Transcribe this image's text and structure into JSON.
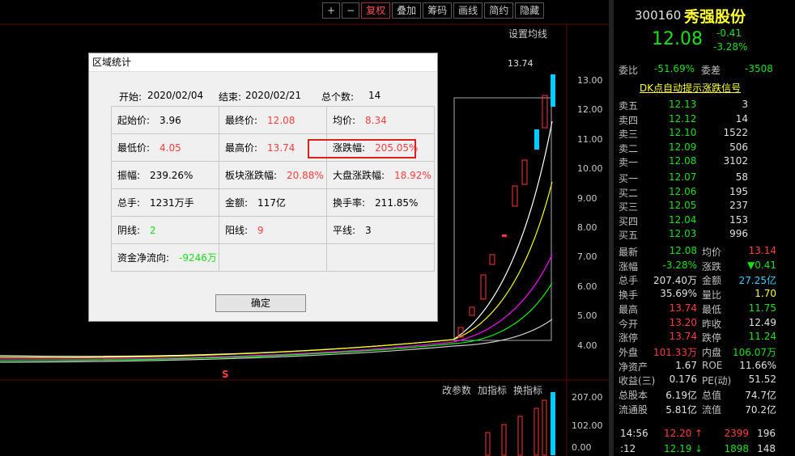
{
  "toolbar": [
    "+",
    "−",
    "复权",
    "叠加",
    "筹码",
    "画线",
    "简约",
    "隐藏"
  ],
  "chart": {
    "ma_setting": "设置均线",
    "high_label": "13.74",
    "marker": "S",
    "price_labels": [
      "13.00",
      "12.00",
      "11.00",
      "10.00",
      "9.00",
      "8.00",
      "7.00",
      "6.00",
      "5.00",
      "4.00"
    ],
    "volume_tabs": [
      "改参数",
      "加指标",
      "换指标"
    ],
    "volume_labels": [
      "207.00",
      "102.00",
      "0.00"
    ]
  },
  "dialog": {
    "title": "区域统计",
    "start_label": "开始:",
    "start": "2020/02/04",
    "end_label": "结束:",
    "end": "2020/02/21",
    "count_label": "总个数:",
    "count": "14",
    "cells": [
      [
        [
          "起始价:",
          "3.96"
        ],
        [
          "最终价:",
          "12.08"
        ],
        [
          "均价:",
          "8.34"
        ]
      ],
      [
        [
          "最低价:",
          "4.05"
        ],
        [
          "最高价:",
          "13.74"
        ],
        [
          "涨跌幅:",
          "205.05%"
        ]
      ],
      [
        [
          "振幅:",
          "239.26%"
        ],
        [
          "板块涨跌幅:",
          "20.88%"
        ],
        [
          "大盘涨跌幅:",
          "18.92%"
        ]
      ],
      [
        [
          "总手:",
          "1231万手"
        ],
        [
          "金额:",
          "117亿"
        ],
        [
          "换手率:",
          "211.85%"
        ]
      ],
      [
        [
          "阴线:",
          "2"
        ],
        [
          "阳线:",
          "9"
        ],
        [
          "平线:",
          "3"
        ]
      ],
      [
        [
          "资金净流向:",
          "-9246万"
        ]
      ]
    ],
    "button": "确定"
  },
  "quote": {
    "code": "300160",
    "name": "秀强股份",
    "price": "12.08",
    "change": "-0.41",
    "pct": "-3.28%",
    "weibi_label": "委比",
    "weibi": "-51.69%",
    "weicha_label": "委差",
    "weicha": "-3508",
    "signal": "DK点自动提示涨跌信号",
    "asks": [
      [
        "卖五",
        "12.13",
        "3"
      ],
      [
        "卖四",
        "12.12",
        "14"
      ],
      [
        "卖三",
        "12.10",
        "1522"
      ],
      [
        "卖二",
        "12.09",
        "506"
      ],
      [
        "卖一",
        "12.08",
        "3102"
      ]
    ],
    "bids": [
      [
        "买一",
        "12.07",
        "58"
      ],
      [
        "买二",
        "12.06",
        "195"
      ],
      [
        "买三",
        "12.05",
        "237"
      ],
      [
        "买四",
        "12.04",
        "153"
      ],
      [
        "买五",
        "12.03",
        "996"
      ]
    ],
    "stats": [
      [
        "最新",
        "12.08",
        "均价",
        "13.14"
      ],
      [
        "涨幅",
        "-3.28%",
        "涨跌",
        "▼0.41"
      ],
      [
        "总手",
        "207.40万",
        "金额",
        "27.25亿"
      ],
      [
        "换手",
        "35.69%",
        "量比",
        "1.70"
      ],
      [
        "最高",
        "13.74",
        "最低",
        "11.75"
      ],
      [
        "今开",
        "13.20",
        "昨收",
        "12.49"
      ],
      [
        "涨停",
        "13.74",
        "跌停",
        "11.24"
      ],
      [
        "外盘",
        "101.33万",
        "内盘",
        "106.07万"
      ],
      [
        "净资产",
        "1.67",
        "ROE",
        "11.66%"
      ],
      [
        "收益(三)",
        "0.176",
        "PE(动)",
        "51.52"
      ],
      [
        "总股本",
        "6.19亿",
        "总值",
        "74.7亿"
      ],
      [
        "流通股",
        "5.81亿",
        "流值",
        "70.2亿"
      ]
    ],
    "ticks": [
      [
        "14:56",
        "12.20",
        "↑",
        "2399",
        "196"
      ],
      [
        ":12",
        "12.19",
        "↓",
        "1898",
        "148"
      ]
    ]
  }
}
